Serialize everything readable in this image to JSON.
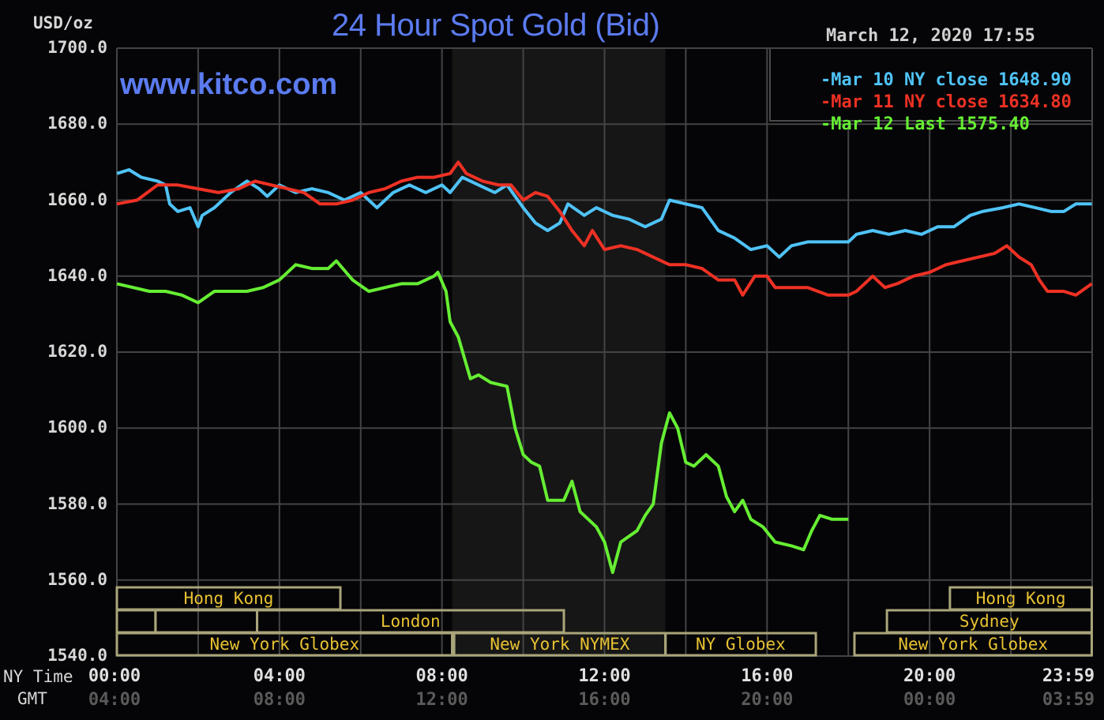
{
  "header": {
    "title": "24 Hour Spot Gold (Bid)",
    "watermark": "www.kitco.com",
    "unit": "USD/oz",
    "timestamp": "March 12, 2020 17:55"
  },
  "legend": {
    "items": [
      {
        "label": "Mar 10 NY close 1648.90",
        "color": "#4fc3f7"
      },
      {
        "label": "Mar 11 NY close 1634.80",
        "color": "#ee3124"
      },
      {
        "label": "Mar 12 Last 1575.40",
        "color": "#66ee33"
      }
    ]
  },
  "axis": {
    "y_ticks": [
      "1700.0",
      "1680.0",
      "1660.0",
      "1640.0",
      "1620.0",
      "1600.0",
      "1580.0",
      "1560.0",
      "1540.0"
    ],
    "x_label_ny": "NY Time",
    "x_label_gmt": "GMT",
    "x_ticks_ny": [
      "00:00",
      "04:00",
      "08:00",
      "12:00",
      "16:00",
      "20:00",
      "23:59"
    ],
    "x_ticks_gmt": [
      "04:00",
      "08:00",
      "12:00",
      "16:00",
      "20:00",
      "00:00",
      "03:59"
    ]
  },
  "sessions": [
    {
      "label": "Hong Kong",
      "row": 0,
      "start": 0,
      "end": 5.5
    },
    {
      "label": "",
      "row": 1,
      "start": 0,
      "end": 0.95
    },
    {
      "label": "",
      "row": 1,
      "start": 0.95,
      "end": 3.45
    },
    {
      "label": "London",
      "row": 1,
      "start": 3.45,
      "end": 11.0
    },
    {
      "label": "New York Globex",
      "row": 2,
      "start": 0,
      "end": 8.25
    },
    {
      "label": "New York NYMEX",
      "row": 2,
      "start": 8.3,
      "end": 13.5
    },
    {
      "label": "NY Globex",
      "row": 2,
      "start": 13.5,
      "end": 17.2
    },
    {
      "label": "Hong Kong",
      "row": 0,
      "start": 20.5,
      "end": 23.99
    },
    {
      "label": "Sydney",
      "row": 1,
      "start": 18.95,
      "end": 23.99
    },
    {
      "label": "New York Globex",
      "row": 2,
      "start": 18.15,
      "end": 23.99
    }
  ],
  "colors": {
    "background": "#050507",
    "grid": "#444444",
    "shade": "#161616",
    "session_border": "#a9a57a",
    "session_text": "#e8c232",
    "title": "#5b7bf0"
  },
  "chart_data": {
    "type": "line",
    "title": "24 Hour Spot Gold (Bid)",
    "xlabel": "NY Time",
    "ylabel": "USD/oz",
    "ylim": [
      1540,
      1700
    ],
    "xlim_hours": [
      0,
      24
    ],
    "grid": true,
    "legend_position": "top-right",
    "shaded_region_hours": [
      8.25,
      13.5
    ],
    "series": [
      {
        "name": "Mar 10 NY close 1648.90",
        "color": "#4fc3f7",
        "points": [
          [
            0,
            1667
          ],
          [
            0.3,
            1668
          ],
          [
            0.6,
            1666
          ],
          [
            1.0,
            1665
          ],
          [
            1.2,
            1664
          ],
          [
            1.3,
            1659
          ],
          [
            1.5,
            1657
          ],
          [
            1.8,
            1658
          ],
          [
            2.0,
            1653
          ],
          [
            2.1,
            1656
          ],
          [
            2.4,
            1658
          ],
          [
            2.8,
            1662
          ],
          [
            3.2,
            1665
          ],
          [
            3.5,
            1663
          ],
          [
            3.7,
            1661
          ],
          [
            4.0,
            1664
          ],
          [
            4.4,
            1662
          ],
          [
            4.8,
            1663
          ],
          [
            5.2,
            1662
          ],
          [
            5.6,
            1660
          ],
          [
            6.0,
            1662
          ],
          [
            6.4,
            1658
          ],
          [
            6.8,
            1662
          ],
          [
            7.2,
            1664
          ],
          [
            7.6,
            1662
          ],
          [
            8.0,
            1664
          ],
          [
            8.2,
            1662
          ],
          [
            8.5,
            1666
          ],
          [
            8.9,
            1664
          ],
          [
            9.3,
            1662
          ],
          [
            9.6,
            1664
          ],
          [
            10.0,
            1658
          ],
          [
            10.3,
            1654
          ],
          [
            10.6,
            1652
          ],
          [
            10.9,
            1654
          ],
          [
            11.1,
            1659
          ],
          [
            11.5,
            1656
          ],
          [
            11.8,
            1658
          ],
          [
            12.2,
            1656
          ],
          [
            12.6,
            1655
          ],
          [
            13.0,
            1653
          ],
          [
            13.4,
            1655
          ],
          [
            13.6,
            1660
          ],
          [
            14.0,
            1659
          ],
          [
            14.4,
            1658
          ],
          [
            14.8,
            1652
          ],
          [
            15.2,
            1650
          ],
          [
            15.6,
            1647
          ],
          [
            16.0,
            1648
          ],
          [
            16.3,
            1645
          ],
          [
            16.6,
            1648
          ],
          [
            17.0,
            1649
          ],
          [
            17.5,
            1649
          ],
          [
            18.0,
            1649
          ],
          [
            18.2,
            1651
          ],
          [
            18.6,
            1652
          ],
          [
            19.0,
            1651
          ],
          [
            19.4,
            1652
          ],
          [
            19.8,
            1651
          ],
          [
            20.2,
            1653
          ],
          [
            20.6,
            1653
          ],
          [
            21.0,
            1656
          ],
          [
            21.3,
            1657
          ],
          [
            21.8,
            1658
          ],
          [
            22.2,
            1659
          ],
          [
            22.6,
            1658
          ],
          [
            23.0,
            1657
          ],
          [
            23.3,
            1657
          ],
          [
            23.6,
            1659
          ],
          [
            23.99,
            1659
          ]
        ]
      },
      {
        "name": "Mar 11 NY close 1634.80",
        "color": "#ee3124",
        "points": [
          [
            0,
            1659
          ],
          [
            0.5,
            1660
          ],
          [
            1.0,
            1664
          ],
          [
            1.5,
            1664
          ],
          [
            2.0,
            1663
          ],
          [
            2.5,
            1662
          ],
          [
            3.0,
            1663
          ],
          [
            3.4,
            1665
          ],
          [
            3.8,
            1664
          ],
          [
            4.2,
            1663
          ],
          [
            4.6,
            1662
          ],
          [
            5.0,
            1659
          ],
          [
            5.4,
            1659
          ],
          [
            5.8,
            1660
          ],
          [
            6.2,
            1662
          ],
          [
            6.6,
            1663
          ],
          [
            7.0,
            1665
          ],
          [
            7.4,
            1666
          ],
          [
            7.8,
            1666
          ],
          [
            8.2,
            1667
          ],
          [
            8.4,
            1670
          ],
          [
            8.6,
            1667
          ],
          [
            9.0,
            1665
          ],
          [
            9.4,
            1664
          ],
          [
            9.7,
            1664
          ],
          [
            10.0,
            1660
          ],
          [
            10.3,
            1662
          ],
          [
            10.6,
            1661
          ],
          [
            10.9,
            1657
          ],
          [
            11.2,
            1652
          ],
          [
            11.5,
            1648
          ],
          [
            11.7,
            1652
          ],
          [
            12.0,
            1647
          ],
          [
            12.4,
            1648
          ],
          [
            12.8,
            1647
          ],
          [
            13.2,
            1645
          ],
          [
            13.6,
            1643
          ],
          [
            14.0,
            1643
          ],
          [
            14.4,
            1642
          ],
          [
            14.8,
            1639
          ],
          [
            15.2,
            1639
          ],
          [
            15.4,
            1635
          ],
          [
            15.7,
            1640
          ],
          [
            16.0,
            1640
          ],
          [
            16.2,
            1637
          ],
          [
            16.6,
            1637
          ],
          [
            17.0,
            1637
          ],
          [
            17.5,
            1635
          ],
          [
            18.0,
            1635
          ],
          [
            18.2,
            1636
          ],
          [
            18.6,
            1640
          ],
          [
            18.9,
            1637
          ],
          [
            19.2,
            1638
          ],
          [
            19.6,
            1640
          ],
          [
            20.0,
            1641
          ],
          [
            20.4,
            1643
          ],
          [
            20.8,
            1644
          ],
          [
            21.2,
            1645
          ],
          [
            21.6,
            1646
          ],
          [
            21.9,
            1648
          ],
          [
            22.2,
            1645
          ],
          [
            22.5,
            1643
          ],
          [
            22.7,
            1639
          ],
          [
            22.9,
            1636
          ],
          [
            23.3,
            1636
          ],
          [
            23.6,
            1635
          ],
          [
            23.99,
            1638
          ]
        ]
      },
      {
        "name": "Mar 12 Last 1575.40",
        "color": "#66ee33",
        "points": [
          [
            0,
            1638
          ],
          [
            0.4,
            1637
          ],
          [
            0.8,
            1636
          ],
          [
            1.2,
            1636
          ],
          [
            1.6,
            1635
          ],
          [
            2.0,
            1633
          ],
          [
            2.4,
            1636
          ],
          [
            2.8,
            1636
          ],
          [
            3.2,
            1636
          ],
          [
            3.6,
            1637
          ],
          [
            4.0,
            1639
          ],
          [
            4.4,
            1643
          ],
          [
            4.8,
            1642
          ],
          [
            5.2,
            1642
          ],
          [
            5.4,
            1644
          ],
          [
            5.8,
            1639
          ],
          [
            6.2,
            1636
          ],
          [
            6.6,
            1637
          ],
          [
            7.0,
            1638
          ],
          [
            7.4,
            1638
          ],
          [
            7.8,
            1640
          ],
          [
            7.9,
            1641
          ],
          [
            8.1,
            1636
          ],
          [
            8.2,
            1628
          ],
          [
            8.4,
            1624
          ],
          [
            8.7,
            1613
          ],
          [
            8.9,
            1614
          ],
          [
            9.2,
            1612
          ],
          [
            9.6,
            1611
          ],
          [
            9.8,
            1600
          ],
          [
            10.0,
            1593
          ],
          [
            10.2,
            1591
          ],
          [
            10.4,
            1590
          ],
          [
            10.6,
            1581
          ],
          [
            11.0,
            1581
          ],
          [
            11.2,
            1586
          ],
          [
            11.4,
            1578
          ],
          [
            11.8,
            1574
          ],
          [
            12.0,
            1570
          ],
          [
            12.2,
            1562
          ],
          [
            12.4,
            1570
          ],
          [
            12.8,
            1573
          ],
          [
            13.0,
            1577
          ],
          [
            13.2,
            1580
          ],
          [
            13.4,
            1596
          ],
          [
            13.6,
            1604
          ],
          [
            13.8,
            1600
          ],
          [
            14.0,
            1591
          ],
          [
            14.2,
            1590
          ],
          [
            14.5,
            1593
          ],
          [
            14.8,
            1590
          ],
          [
            15.0,
            1582
          ],
          [
            15.2,
            1578
          ],
          [
            15.4,
            1581
          ],
          [
            15.6,
            1576
          ],
          [
            15.9,
            1574
          ],
          [
            16.2,
            1570
          ],
          [
            16.6,
            1569
          ],
          [
            16.9,
            1568
          ],
          [
            17.1,
            1573
          ],
          [
            17.3,
            1577
          ],
          [
            17.6,
            1576
          ],
          [
            18.0,
            1576
          ]
        ]
      }
    ]
  }
}
